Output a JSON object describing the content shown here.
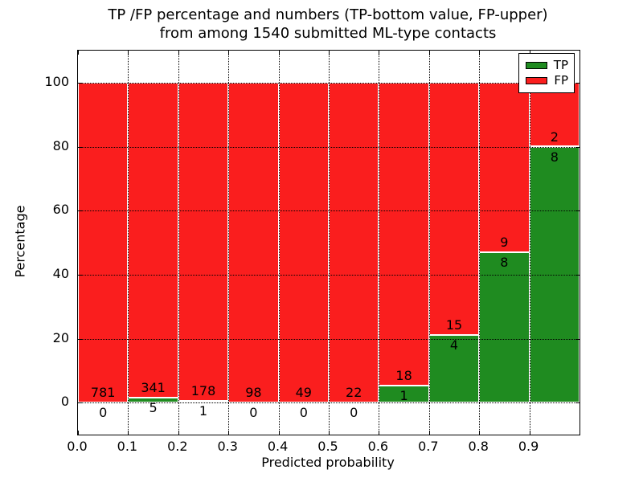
{
  "title": {
    "line1": "TP /FP percentage and numbers (TP-bottom value, FP-upper)",
    "line2": "from among 1540 submitted ML-type contacts"
  },
  "chart_data": {
    "type": "bar",
    "stacked": true,
    "title": "TP /FP percentage and numbers (TP-bottom value, FP-upper) from among 1540 submitted ML-type contacts",
    "xlabel": "Predicted probability",
    "ylabel": "Percentage",
    "categories": [
      "0.0-0.1",
      "0.1-0.2",
      "0.2-0.3",
      "0.3-0.4",
      "0.4-0.5",
      "0.5-0.6",
      "0.6-0.7",
      "0.7-0.8",
      "0.8-0.9",
      "0.9-1.0"
    ],
    "x_tick_labels": [
      "0.0",
      "0.1",
      "0.2",
      "0.3",
      "0.4",
      "0.5",
      "0.6",
      "0.7",
      "0.8",
      "0.9"
    ],
    "y_ticks": [
      0,
      20,
      40,
      60,
      80,
      100
    ],
    "xlim": [
      0.0,
      1.0
    ],
    "ylim": [
      -10,
      110
    ],
    "grid": {
      "visible": true,
      "linestyle": "dotted",
      "color": "#000000"
    },
    "bar_edge_color": "#ffffff",
    "total_contacts": 1540,
    "series": [
      {
        "name": "TP",
        "role": "bottom",
        "color": "#1f8b20",
        "counts": [
          0,
          5,
          1,
          0,
          0,
          0,
          1,
          4,
          8,
          8
        ],
        "percent": [
          0,
          1.45,
          0.56,
          0,
          0,
          0,
          5.26,
          21.05,
          47.06,
          80.0
        ]
      },
      {
        "name": "FP",
        "role": "top",
        "color": "#fa1e1e",
        "counts": [
          781,
          341,
          178,
          98,
          49,
          22,
          18,
          15,
          9,
          2
        ],
        "percent": [
          100,
          98.55,
          99.44,
          100,
          100,
          100,
          94.74,
          78.95,
          52.94,
          20.0
        ]
      }
    ],
    "legend": {
      "position": "upper right",
      "items": [
        {
          "label": "TP",
          "color": "#1f8b20"
        },
        {
          "label": "FP",
          "color": "#fa1e1e"
        }
      ]
    }
  }
}
